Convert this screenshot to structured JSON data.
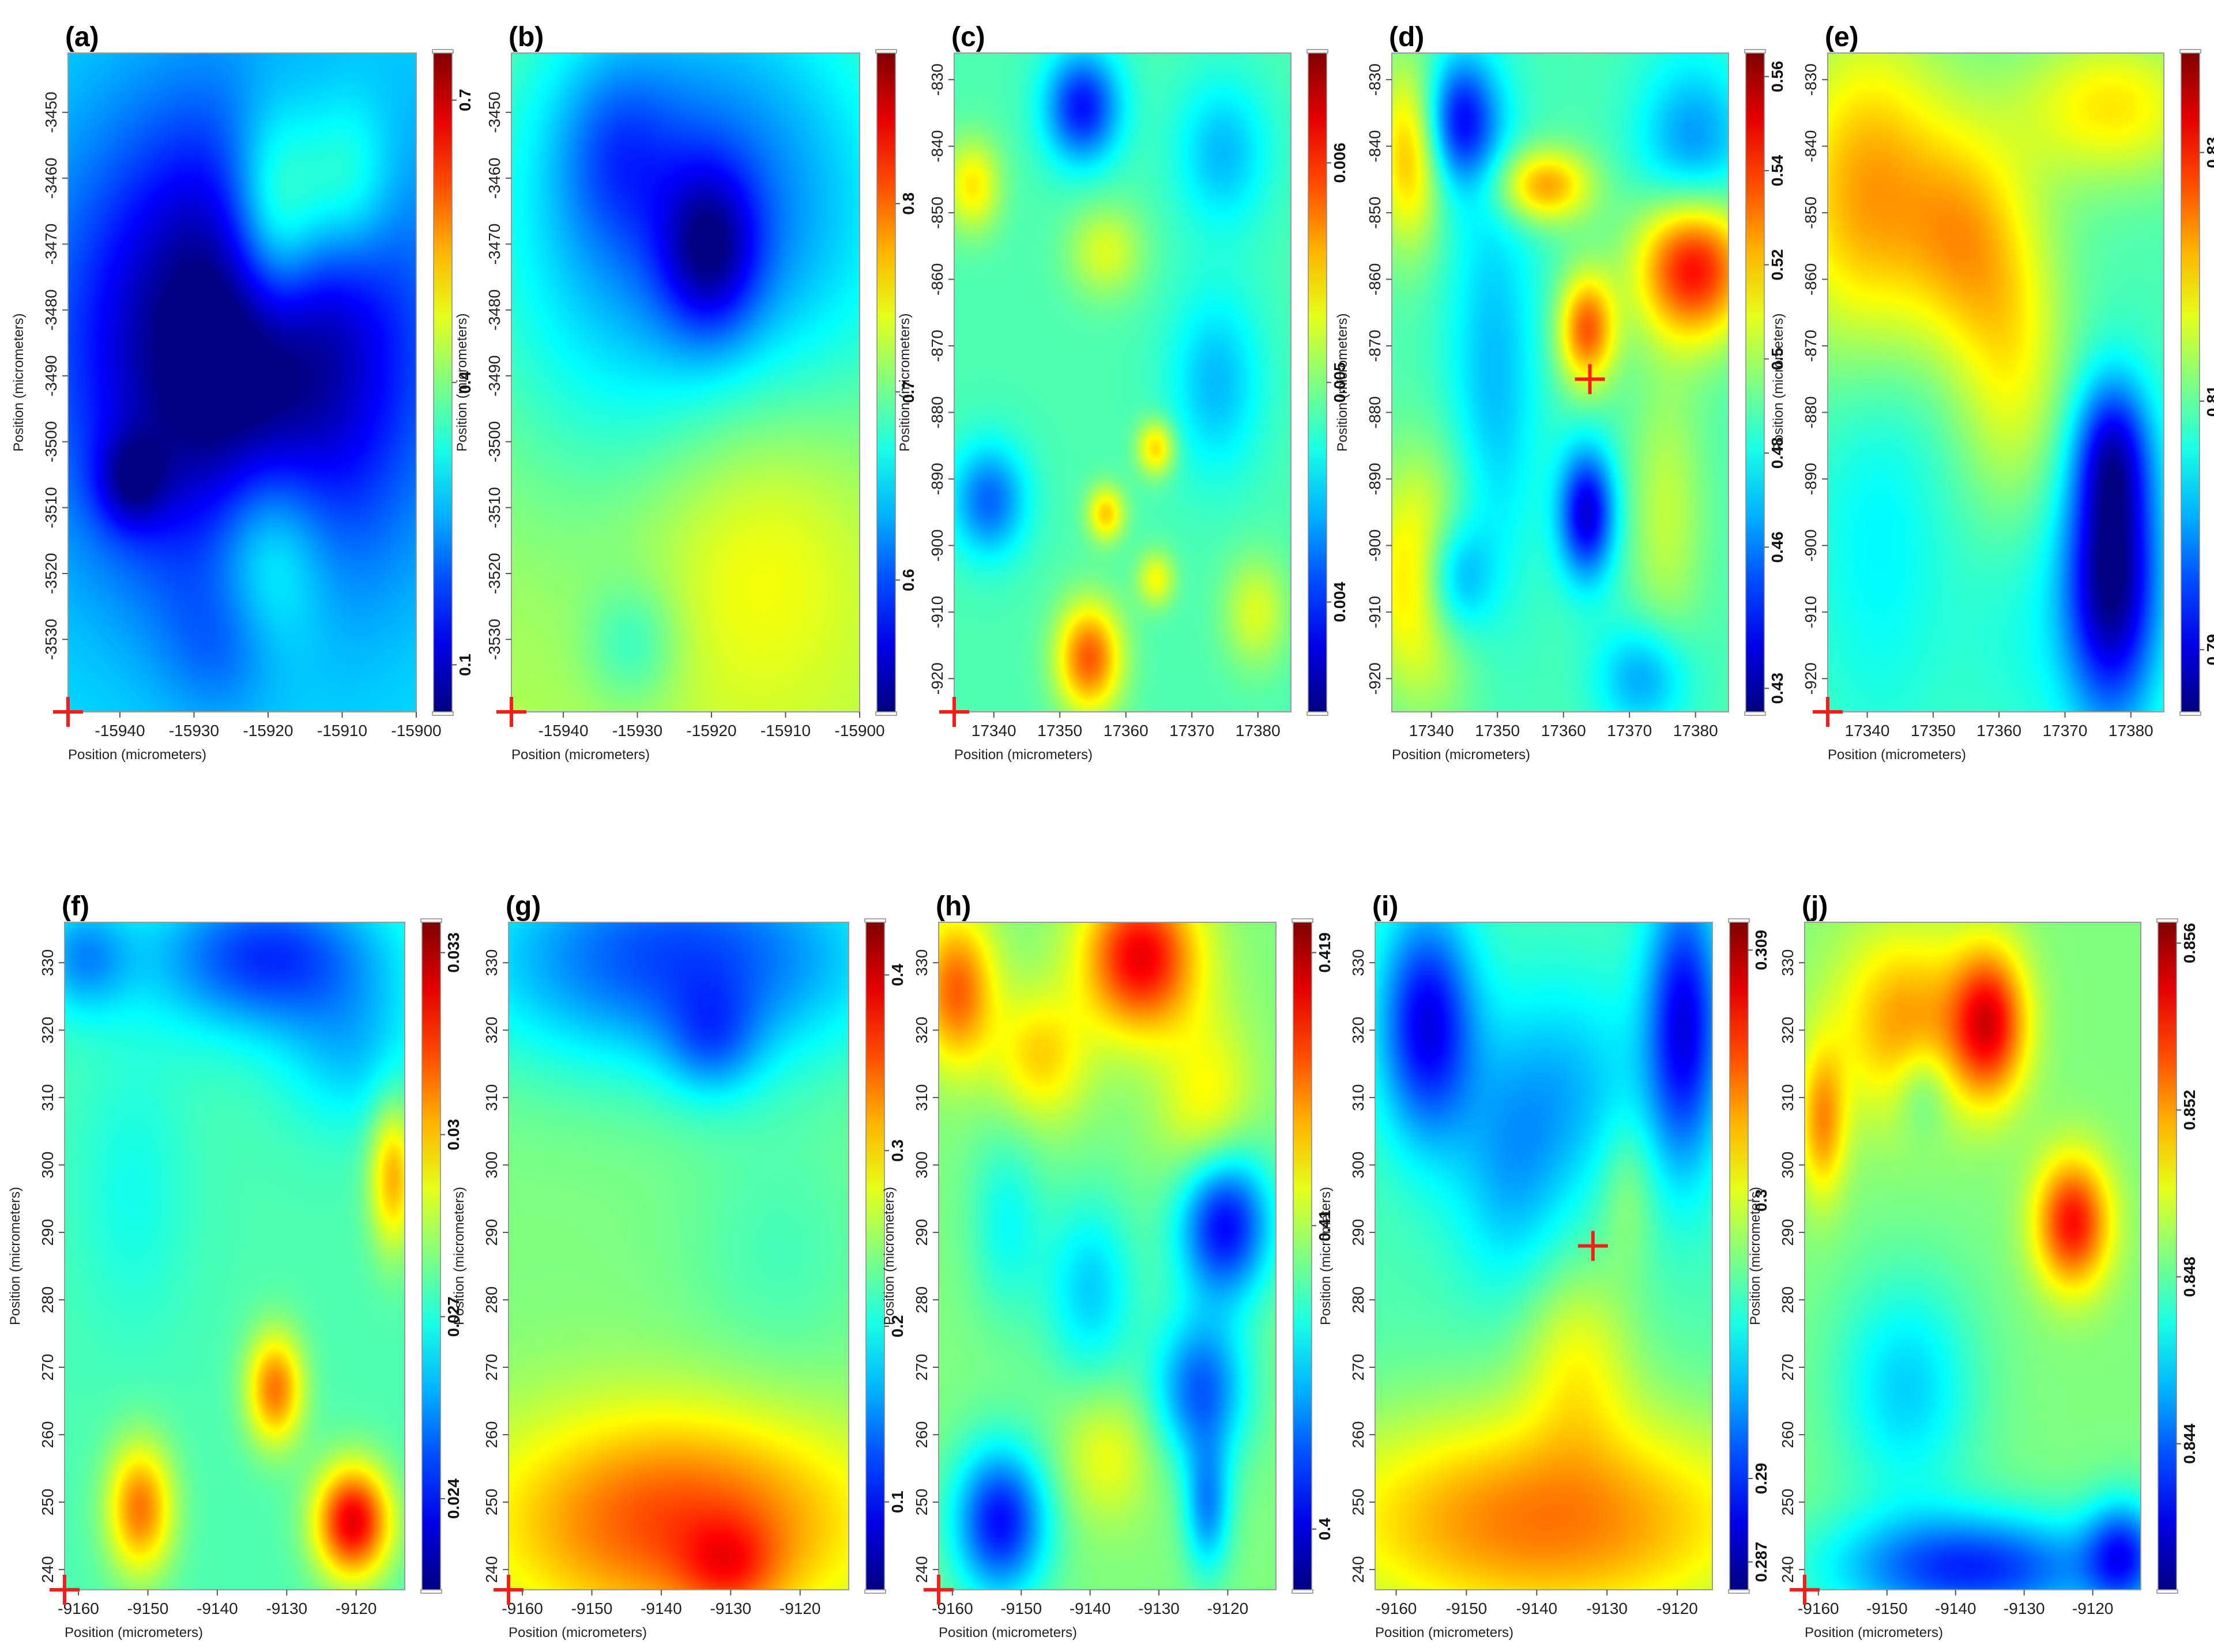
{
  "chart_data": [
    {
      "panel": "(a)",
      "type": "heatmap",
      "xlabel": "Position (micrometers)",
      "ylabel": "Position (micrometers)",
      "xlim": [
        -15947,
        -15900
      ],
      "ylim": [
        -3541,
        -3441
      ],
      "x_ticks": [
        -15940,
        -15930,
        -15920,
        -15910,
        -15900
      ],
      "y_ticks": [
        -3450,
        -3460,
        -3470,
        -3480,
        -3490,
        -3500,
        -3510,
        -3520,
        -3530
      ],
      "colorbar": {
        "min": 0.05,
        "max": 0.75,
        "ticks": [
          0.1,
          0.4,
          0.7
        ]
      },
      "origin_marker": true,
      "features": [
        [
          0.5,
          0.55,
          0.35,
          0.25,
          -1.6
        ],
        [
          0.6,
          0.75,
          0.1,
          0.12,
          1.1
        ],
        [
          0.8,
          0.8,
          0.1,
          0.1,
          0.7
        ],
        [
          0.18,
          0.35,
          0.07,
          0.05,
          -0.6
        ],
        [
          0.58,
          0.25,
          0.12,
          0.12,
          0.7
        ],
        [
          0.45,
          0.1,
          0.12,
          0.08,
          -0.3
        ]
      ],
      "bias": 0.35
    },
    {
      "panel": "(b)",
      "type": "heatmap",
      "xlabel": "Position (micrometers)",
      "ylabel": "Position (micrometers)",
      "xlim": [
        -15947,
        -15900
      ],
      "ylim": [
        -3541,
        -3441
      ],
      "x_ticks": [
        -15940,
        -15930,
        -15920,
        -15910,
        -15900
      ],
      "y_ticks": [
        -3450,
        -3460,
        -3470,
        -3480,
        -3490,
        -3500,
        -3510,
        -3520,
        -3530
      ],
      "colorbar": {
        "min": 0.53,
        "max": 0.88,
        "ticks": [
          0.6,
          0.7,
          0.8
        ]
      },
      "origin_marker": true,
      "features": [
        [
          0.55,
          0.75,
          0.45,
          0.3,
          -1.2
        ],
        [
          0.57,
          0.7,
          0.1,
          0.09,
          -0.9
        ],
        [
          0.7,
          0.3,
          0.25,
          0.2,
          0.5
        ],
        [
          0.35,
          0.1,
          0.1,
          0.07,
          -0.4
        ],
        [
          0.3,
          0.85,
          0.12,
          0.1,
          -0.4
        ]
      ],
      "bias": 0.55
    },
    {
      "panel": "(c)",
      "type": "heatmap",
      "xlabel": "Position (micrometers)",
      "ylabel": "Position (micrometers)",
      "xlim": [
        17334,
        17385
      ],
      "ylim": [
        -925,
        -826
      ],
      "x_ticks": [
        17340,
        17350,
        17360,
        17370,
        17380
      ],
      "y_ticks": [
        -830,
        -840,
        -850,
        -860,
        -870,
        -880,
        -890,
        -900,
        -910,
        -920
      ],
      "colorbar": {
        "min": 0.0035,
        "max": 0.0065,
        "ticks": [
          0.004,
          0.005,
          0.006
        ]
      },
      "origin_marker": true,
      "features": [
        [
          0.38,
          0.92,
          0.08,
          0.06,
          -1.1
        ],
        [
          0.1,
          0.32,
          0.08,
          0.06,
          -0.8
        ],
        [
          0.8,
          0.85,
          0.1,
          0.08,
          -0.5
        ],
        [
          0.78,
          0.5,
          0.1,
          0.1,
          -0.5
        ],
        [
          0.4,
          0.08,
          0.07,
          0.06,
          1.2
        ],
        [
          0.45,
          0.3,
          0.04,
          0.03,
          0.8
        ],
        [
          0.6,
          0.4,
          0.04,
          0.03,
          0.8
        ],
        [
          0.6,
          0.2,
          0.04,
          0.03,
          0.6
        ],
        [
          0.05,
          0.8,
          0.06,
          0.05,
          0.7
        ],
        [
          0.45,
          0.7,
          0.08,
          0.05,
          0.5
        ],
        [
          0.9,
          0.15,
          0.07,
          0.06,
          0.5
        ]
      ],
      "bias": 0.45
    },
    {
      "panel": "(d)",
      "type": "heatmap",
      "xlabel": "Position (micrometers)",
      "ylabel": "Position (micrometers)",
      "xlim": [
        17334,
        17385
      ],
      "ylim": [
        -925,
        -826
      ],
      "x_ticks": [
        17340,
        17350,
        17360,
        17370,
        17380
      ],
      "y_ticks": [
        -830,
        -840,
        -850,
        -860,
        -870,
        -880,
        -890,
        -900,
        -910,
        -920
      ],
      "colorbar": {
        "min": 0.425,
        "max": 0.565,
        "ticks": [
          0.43,
          0.46,
          0.48,
          0.5,
          0.52,
          0.54,
          0.56
        ]
      },
      "origin_marker": false,
      "marker": {
        "x": 17364,
        "y": -875
      },
      "features": [
        [
          0.9,
          0.68,
          0.12,
          0.08,
          1.6
        ],
        [
          0.58,
          0.58,
          0.06,
          0.06,
          1.2
        ],
        [
          0.45,
          0.8,
          0.1,
          0.04,
          1.0
        ],
        [
          0.1,
          0.2,
          0.12,
          0.12,
          1.0
        ],
        [
          0.05,
          0.85,
          0.07,
          0.1,
          0.9
        ],
        [
          0.2,
          0.9,
          0.08,
          0.07,
          -1.1
        ],
        [
          0.58,
          0.3,
          0.06,
          0.07,
          -1.3
        ],
        [
          0.18,
          0.2,
          0.08,
          0.07,
          -1.0
        ],
        [
          0.9,
          0.85,
          0.12,
          0.1,
          -0.7
        ],
        [
          0.75,
          0.05,
          0.1,
          0.06,
          -0.6
        ],
        [
          0.3,
          0.5,
          0.1,
          0.25,
          -0.5
        ],
        [
          0.82,
          0.3,
          0.08,
          0.15,
          0.4
        ]
      ],
      "bias": 0.45
    },
    {
      "panel": "(e)",
      "type": "heatmap",
      "xlabel": "Position (micrometers)",
      "ylabel": "Position (micrometers)",
      "xlim": [
        17334,
        17385
      ],
      "ylim": [
        -925,
        -826
      ],
      "x_ticks": [
        17340,
        17350,
        17360,
        17370,
        17380
      ],
      "y_ticks": [
        -830,
        -840,
        -850,
        -860,
        -870,
        -880,
        -890,
        -900,
        -910,
        -920
      ],
      "colorbar": {
        "min": 0.785,
        "max": 0.838,
        "ticks": [
          0.79,
          0.81,
          0.83
        ]
      },
      "origin_marker": true,
      "features": [
        [
          0.12,
          0.78,
          0.18,
          0.18,
          1.0
        ],
        [
          0.4,
          0.72,
          0.12,
          0.12,
          0.6
        ],
        [
          0.55,
          0.55,
          0.12,
          0.18,
          0.6
        ],
        [
          0.85,
          0.92,
          0.2,
          0.08,
          0.7
        ],
        [
          0.85,
          0.2,
          0.1,
          0.15,
          -1.6
        ],
        [
          0.85,
          0.4,
          0.08,
          0.08,
          -0.8
        ],
        [
          0.15,
          0.3,
          0.15,
          0.25,
          -0.3
        ],
        [
          0.6,
          0.15,
          0.15,
          0.15,
          -0.2
        ]
      ],
      "bias": 0.45
    },
    {
      "panel": "(f)",
      "type": "heatmap",
      "xlabel": "Position (micrometers)",
      "ylabel": "Position (micrometers)",
      "xlim": [
        -9162,
        -9113
      ],
      "ylim": [
        237,
        336
      ],
      "x_ticks": [
        -9160,
        -9150,
        -9140,
        -9130,
        -9120
      ],
      "y_ticks": [
        240,
        250,
        260,
        270,
        280,
        290,
        300,
        310,
        320,
        330
      ],
      "colorbar": {
        "min": 0.0225,
        "max": 0.0335,
        "ticks": [
          0.024,
          0.027,
          0.03,
          0.033
        ]
      },
      "origin_marker": true,
      "features": [
        [
          0.6,
          0.95,
          0.25,
          0.08,
          -1.0
        ],
        [
          0.05,
          0.95,
          0.1,
          0.06,
          -0.6
        ],
        [
          0.85,
          0.8,
          0.15,
          0.08,
          -0.4
        ],
        [
          0.85,
          0.1,
          0.08,
          0.06,
          1.6
        ],
        [
          0.22,
          0.12,
          0.07,
          0.07,
          1.1
        ],
        [
          0.62,
          0.3,
          0.06,
          0.06,
          1.1
        ],
        [
          0.97,
          0.62,
          0.05,
          0.08,
          0.9
        ],
        [
          0.2,
          0.6,
          0.12,
          0.15,
          -0.2
        ]
      ],
      "bias": 0.45
    },
    {
      "panel": "(g)",
      "type": "heatmap",
      "xlabel": "Position (micrometers)",
      "ylabel": "Position (micrometers)",
      "xlim": [
        -9162,
        -9113
      ],
      "ylim": [
        237,
        336
      ],
      "x_ticks": [
        -9160,
        -9150,
        -9140,
        -9130,
        -9120
      ],
      "y_ticks": [
        240,
        250,
        260,
        270,
        280,
        290,
        300,
        310,
        320,
        330
      ],
      "colorbar": {
        "min": 0.05,
        "max": 0.43,
        "ticks": [
          0.1,
          0.2,
          0.3,
          0.4
        ]
      },
      "origin_marker": true,
      "features": [
        [
          0.5,
          0.95,
          0.45,
          0.12,
          -1.1
        ],
        [
          0.6,
          0.82,
          0.1,
          0.06,
          -0.5
        ],
        [
          0.5,
          0.1,
          0.4,
          0.12,
          1.1
        ],
        [
          0.65,
          0.03,
          0.1,
          0.05,
          0.5
        ],
        [
          0.8,
          0.5,
          0.2,
          0.15,
          -0.2
        ]
      ],
      "bias": 0.5
    },
    {
      "panel": "(h)",
      "type": "heatmap",
      "xlabel": "Position (micrometers)",
      "ylabel": "Position (micrometers)",
      "xlim": [
        -9162,
        -9113
      ],
      "ylim": [
        237,
        336
      ],
      "x_ticks": [
        -9160,
        -9150,
        -9140,
        -9130,
        -9120
      ],
      "y_ticks": [
        240,
        250,
        260,
        270,
        280,
        290,
        300,
        310,
        320,
        330
      ],
      "colorbar": {
        "min": 0.398,
        "max": 0.42,
        "ticks": [
          0.4,
          0.41,
          0.419
        ]
      },
      "origin_marker": true,
      "features": [
        [
          0.6,
          0.95,
          0.12,
          0.08,
          1.4
        ],
        [
          0.05,
          0.9,
          0.08,
          0.08,
          1.0
        ],
        [
          0.3,
          0.8,
          0.1,
          0.07,
          0.6
        ],
        [
          0.8,
          0.72,
          0.1,
          0.1,
          0.5
        ],
        [
          0.85,
          0.55,
          0.1,
          0.08,
          -1.4
        ],
        [
          0.18,
          0.1,
          0.1,
          0.08,
          -1.3
        ],
        [
          0.78,
          0.3,
          0.1,
          0.08,
          -1.0
        ],
        [
          0.8,
          0.12,
          0.05,
          0.07,
          -0.8
        ],
        [
          0.45,
          0.45,
          0.1,
          0.1,
          -0.6
        ],
        [
          0.2,
          0.55,
          0.08,
          0.1,
          -0.4
        ],
        [
          0.5,
          0.2,
          0.1,
          0.07,
          0.4
        ]
      ],
      "bias": 0.5
    },
    {
      "panel": "(i)",
      "type": "heatmap",
      "xlabel": "Position (micrometers)",
      "ylabel": "Position (micrometers)",
      "xlim": [
        -9163,
        -9115
      ],
      "ylim": [
        237,
        336
      ],
      "x_ticks": [
        -9160,
        -9150,
        -9140,
        -9130,
        -9120
      ],
      "y_ticks": [
        240,
        250,
        260,
        270,
        280,
        290,
        300,
        310,
        320,
        330
      ],
      "colorbar": {
        "min": 0.286,
        "max": 0.31,
        "ticks": [
          0.287,
          0.29,
          0.3,
          0.309
        ]
      },
      "origin_marker": false,
      "marker": {
        "x": -9132,
        "y": 288
      },
      "features": [
        [
          0.5,
          0.1,
          0.5,
          0.12,
          1.1
        ],
        [
          0.15,
          0.85,
          0.1,
          0.12,
          -1.2
        ],
        [
          0.92,
          0.85,
          0.08,
          0.15,
          -1.2
        ],
        [
          0.55,
          0.75,
          0.2,
          0.12,
          -0.5
        ],
        [
          0.4,
          0.6,
          0.12,
          0.12,
          -0.4
        ],
        [
          0.6,
          0.35,
          0.12,
          0.1,
          0.5
        ],
        [
          0.75,
          0.6,
          0.06,
          0.08,
          0.3
        ]
      ],
      "bias": 0.45
    },
    {
      "panel": "(j)",
      "type": "heatmap",
      "xlabel": "Position (micrometers)",
      "ylabel": "Position (micrometers)",
      "xlim": [
        -9162,
        -9113
      ],
      "ylim": [
        237,
        336
      ],
      "x_ticks": [
        -9160,
        -9150,
        -9140,
        -9130,
        -9120
      ],
      "y_ticks": [
        240,
        250,
        260,
        270,
        280,
        290,
        300,
        310,
        320,
        330
      ],
      "colorbar": {
        "min": 0.8405,
        "max": 0.8565,
        "ticks": [
          0.844,
          0.848,
          0.852,
          0.856
        ]
      },
      "origin_marker": true,
      "features": [
        [
          0.55,
          0.85,
          0.08,
          0.08,
          1.3
        ],
        [
          0.8,
          0.55,
          0.08,
          0.07,
          1.3
        ],
        [
          0.3,
          0.85,
          0.15,
          0.1,
          0.8
        ],
        [
          0.05,
          0.7,
          0.05,
          0.08,
          0.8
        ],
        [
          0.5,
          0.03,
          0.3,
          0.06,
          -1.2
        ],
        [
          0.95,
          0.05,
          0.08,
          0.06,
          -1.0
        ],
        [
          0.3,
          0.3,
          0.15,
          0.12,
          -0.6
        ],
        [
          0.35,
          0.75,
          0.06,
          0.05,
          -0.4
        ]
      ],
      "bias": 0.5
    }
  ]
}
